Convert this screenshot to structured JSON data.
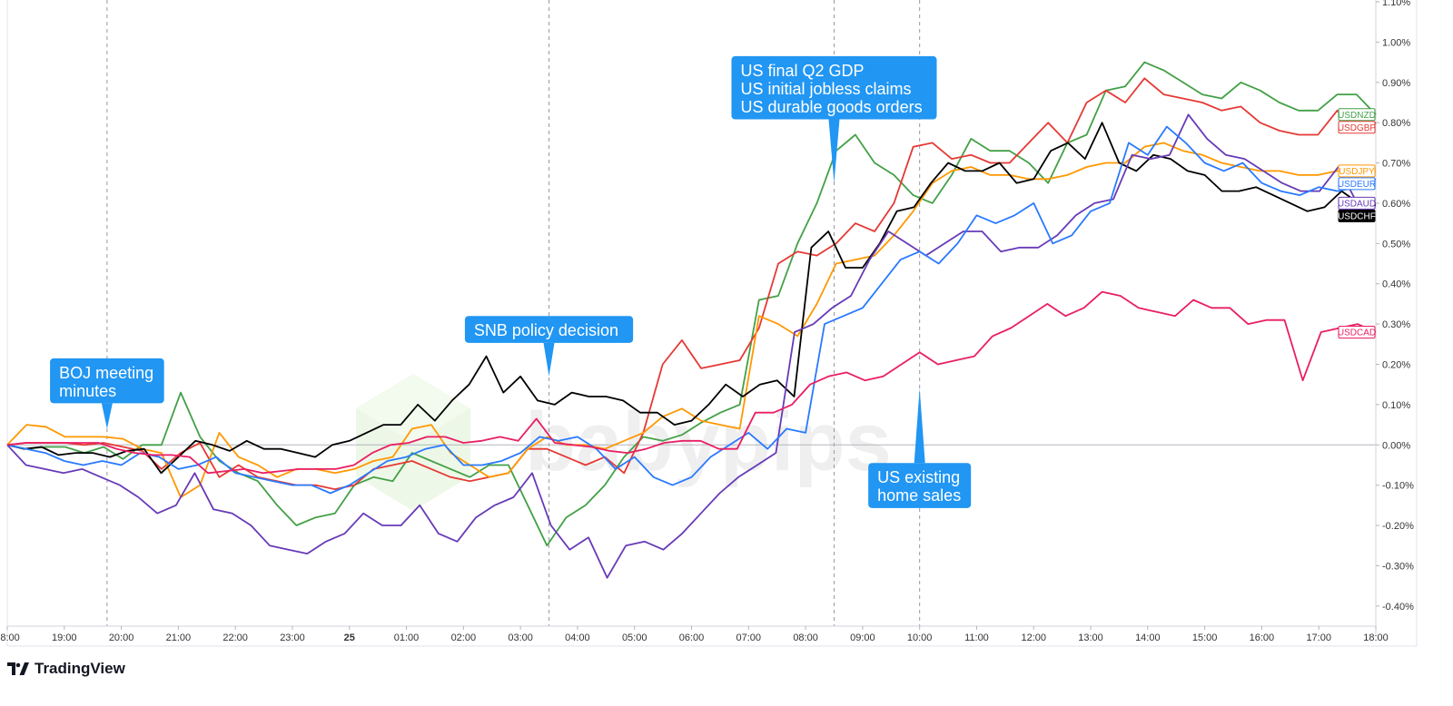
{
  "branding": {
    "name": "TradingView",
    "icon": "tradingview-logo-icon",
    "watermark": "babypips",
    "watermark_icon": "babypips-cube-icon"
  },
  "chart_data": {
    "type": "line",
    "x_ticks": [
      "18:00",
      "19:00",
      "20:00",
      "21:00",
      "22:00",
      "23:00",
      "25",
      "01:00",
      "02:00",
      "03:00",
      "04:00",
      "05:00",
      "06:00",
      "07:00",
      "08:00",
      "09:00",
      "10:00",
      "11:00",
      "12:00",
      "13:00",
      "14:00",
      "15:00",
      "16:00",
      "17:00",
      "18:00"
    ],
    "x_tick_bold": "25",
    "xlim": [
      0,
      24
    ],
    "y_ticks": [
      "1.10%",
      "1.00%",
      "0.90%",
      "0.80%",
      "0.70%",
      "0.60%",
      "0.50%",
      "0.40%",
      "0.30%",
      "0.20%",
      "0.10%",
      "0.00%",
      "-0.10%",
      "-0.20%",
      "-0.30%",
      "-0.40%"
    ],
    "ylim": [
      -0.45,
      1.1
    ],
    "yunit": "%",
    "zero_line": true,
    "event_lines_x": [
      1.75,
      9.5,
      14.5,
      16.0
    ],
    "annotations": [
      {
        "id": "boj",
        "lines": [
          "BOJ meeting",
          "minutes"
        ],
        "anchor_x": 1.75,
        "anchor_y": 0.04,
        "pointer": "down",
        "box_center_x": 1.75,
        "box_top": 0.215,
        "box_width_x": 2.0
      },
      {
        "id": "snb",
        "lines": [
          "SNB policy decision"
        ],
        "anchor_x": 9.5,
        "anchor_y": 0.17,
        "pointer": "down",
        "box_center_x": 9.5,
        "box_top": 0.32,
        "box_width_x": 2.95
      },
      {
        "id": "gdp",
        "lines": [
          "US final Q2 GDP",
          "US initial jobless claims",
          "US durable goods orders"
        ],
        "anchor_x": 14.5,
        "anchor_y": 0.65,
        "pointer": "down",
        "box_center_x": 14.5,
        "box_top": 0.965,
        "box_width_x": 3.6
      },
      {
        "id": "ehs",
        "lines": [
          "US existing",
          "home sales"
        ],
        "anchor_x": 16.0,
        "anchor_y": 0.14,
        "pointer": "up",
        "box_center_x": 16.0,
        "box_top": -0.045,
        "box_width_x": 1.8
      }
    ],
    "series": [
      {
        "name": "USDNZD",
        "color": "#43a047",
        "label_bg": "#ffffff",
        "label_text": "#43a047",
        "values": [
          0,
          -0.01,
          -0.005,
          -0.005,
          -0.02,
          -0.005,
          -0.035,
          0,
          0,
          0.13,
          0.02,
          -0.04,
          -0.07,
          -0.09,
          -0.15,
          -0.2,
          -0.18,
          -0.17,
          -0.1,
          -0.08,
          -0.09,
          -0.02,
          -0.04,
          -0.06,
          -0.08,
          -0.05,
          -0.05,
          -0.15,
          -0.25,
          -0.18,
          -0.15,
          -0.1,
          -0.03,
          0.02,
          0.01,
          0.025,
          0.055,
          0.08,
          0.1,
          0.36,
          0.37,
          0.5,
          0.6,
          0.73,
          0.77,
          0.7,
          0.67,
          0.62,
          0.6,
          0.67,
          0.76,
          0.73,
          0.73,
          0.7,
          0.65,
          0.75,
          0.77,
          0.88,
          0.89,
          0.95,
          0.93,
          0.9,
          0.87,
          0.86,
          0.9,
          0.88,
          0.85,
          0.83,
          0.83,
          0.87,
          0.87,
          0.82
        ]
      },
      {
        "name": "USDGBP",
        "color": "#e53935",
        "label_bg": "#ffffff",
        "label_text": "#e53935",
        "values": [
          0,
          0.005,
          0.005,
          0.005,
          0,
          0.005,
          -0.005,
          -0.015,
          -0.06,
          -0.02,
          0.005,
          -0.08,
          -0.05,
          -0.08,
          -0.09,
          -0.1,
          -0.1,
          -0.11,
          -0.1,
          -0.06,
          -0.05,
          -0.04,
          -0.06,
          -0.08,
          -0.09,
          -0.08,
          -0.07,
          -0.01,
          -0.01,
          -0.03,
          -0.05,
          -0.03,
          -0.07,
          0.03,
          0.2,
          0.26,
          0.19,
          0.2,
          0.21,
          0.29,
          0.45,
          0.48,
          0.47,
          0.5,
          0.55,
          0.53,
          0.6,
          0.74,
          0.75,
          0.71,
          0.72,
          0.7,
          0.7,
          0.75,
          0.8,
          0.75,
          0.85,
          0.88,
          0.85,
          0.91,
          0.87,
          0.86,
          0.85,
          0.83,
          0.84,
          0.8,
          0.78,
          0.77,
          0.77,
          0.83,
          0.78,
          0.8
        ]
      },
      {
        "name": "USDJPY",
        "color": "#ff9800",
        "label_bg": "#ffffff",
        "label_text": "#ff9800",
        "values": [
          0,
          0.05,
          0.045,
          0.02,
          0.02,
          0.02,
          0.015,
          -0.01,
          -0.02,
          -0.13,
          -0.1,
          0.03,
          -0.03,
          -0.05,
          -0.08,
          -0.06,
          -0.06,
          -0.07,
          -0.06,
          -0.04,
          -0.03,
          0.04,
          0.05,
          -0.02,
          -0.05,
          -0.08,
          -0.07,
          -0.01,
          0.02,
          0,
          0,
          -0.01,
          0.01,
          0.03,
          0.07,
          0.09,
          0.06,
          0.05,
          0.04,
          0.32,
          0.3,
          0.27,
          0.35,
          0.45,
          0.46,
          0.47,
          0.52,
          0.58,
          0.65,
          0.68,
          0.69,
          0.67,
          0.67,
          0.66,
          0.66,
          0.67,
          0.69,
          0.7,
          0.7,
          0.74,
          0.75,
          0.73,
          0.72,
          0.7,
          0.69,
          0.68,
          0.68,
          0.67,
          0.67,
          0.68,
          0.69,
          0.68
        ]
      },
      {
        "name": "USDCHF",
        "color": "#000000",
        "label_bg": "#000000",
        "label_text": "#ffffff",
        "values": [
          0,
          -0.01,
          -0.005,
          -0.025,
          -0.02,
          -0.02,
          -0.03,
          -0.015,
          -0.01,
          -0.07,
          -0.03,
          0.01,
          0,
          -0.015,
          0.01,
          -0.01,
          -0.01,
          -0.02,
          -0.03,
          0,
          0.01,
          0.03,
          0.05,
          0.05,
          0.1,
          0.06,
          0.11,
          0.15,
          0.22,
          0.13,
          0.17,
          0.11,
          0.1,
          0.13,
          0.12,
          0.12,
          0.11,
          0.08,
          0.08,
          0.05,
          0.06,
          0.1,
          0.15,
          0.12,
          0.15,
          0.16,
          0.12,
          0.49,
          0.53,
          0.44,
          0.44,
          0.5,
          0.58,
          0.59,
          0.65,
          0.7,
          0.68,
          0.68,
          0.7,
          0.65,
          0.66,
          0.73,
          0.75,
          0.71,
          0.8,
          0.7,
          0.68,
          0.72,
          0.71,
          0.68,
          0.67,
          0.63,
          0.63,
          0.64,
          0.62,
          0.6,
          0.58,
          0.59,
          0.63,
          0.6,
          0.595
        ]
      },
      {
        "name": "USDAUD",
        "color": "#673ab7",
        "label_bg": "#ffffff",
        "label_text": "#673ab7",
        "values": [
          0,
          -0.05,
          -0.06,
          -0.07,
          -0.06,
          -0.08,
          -0.1,
          -0.13,
          -0.17,
          -0.15,
          -0.07,
          -0.16,
          -0.17,
          -0.2,
          -0.25,
          -0.26,
          -0.27,
          -0.24,
          -0.22,
          -0.17,
          -0.2,
          -0.2,
          -0.15,
          -0.22,
          -0.24,
          -0.18,
          -0.15,
          -0.13,
          -0.07,
          -0.2,
          -0.26,
          -0.23,
          -0.33,
          -0.25,
          -0.24,
          -0.26,
          -0.22,
          -0.17,
          -0.12,
          -0.08,
          -0.05,
          -0.02,
          0.28,
          0.3,
          0.34,
          0.37,
          0.46,
          0.53,
          0.5,
          0.47,
          0.5,
          0.53,
          0.53,
          0.48,
          0.49,
          0.49,
          0.52,
          0.57,
          0.6,
          0.61,
          0.72,
          0.71,
          0.72,
          0.82,
          0.76,
          0.72,
          0.71,
          0.68,
          0.65,
          0.63,
          0.63,
          0.69,
          0.6,
          0.6
        ]
      },
      {
        "name": "USDEUR",
        "color": "#2979ff",
        "label_bg": "#ffffff",
        "label_text": "#2979ff",
        "values": [
          0,
          -0.01,
          -0.02,
          -0.04,
          -0.05,
          -0.04,
          -0.05,
          -0.02,
          -0.03,
          -0.06,
          -0.05,
          -0.03,
          -0.07,
          -0.08,
          -0.09,
          -0.1,
          -0.1,
          -0.12,
          -0.1,
          -0.07,
          -0.04,
          -0.03,
          -0.01,
          0,
          -0.05,
          -0.05,
          -0.04,
          -0.02,
          0.02,
          0.01,
          0.02,
          -0.01,
          -0.06,
          -0.03,
          -0.08,
          -0.1,
          -0.08,
          -0.03,
          0,
          0.03,
          -0.01,
          0.04,
          0.03,
          0.3,
          0.32,
          0.34,
          0.4,
          0.46,
          0.48,
          0.45,
          0.5,
          0.57,
          0.55,
          0.57,
          0.6,
          0.5,
          0.52,
          0.58,
          0.6,
          0.75,
          0.72,
          0.79,
          0.75,
          0.7,
          0.68,
          0.7,
          0.65,
          0.63,
          0.62,
          0.64,
          0.63,
          0.64,
          0.66
        ]
      },
      {
        "name": "USDCAD",
        "color": "#e91e63",
        "label_bg": "#ffffff",
        "label_text": "#e91e63",
        "values": [
          0,
          0.005,
          0.005,
          0.005,
          0.005,
          0.005,
          -0.01,
          -0.02,
          -0.025,
          -0.025,
          -0.03,
          -0.07,
          -0.065,
          -0.06,
          -0.07,
          -0.065,
          -0.06,
          -0.06,
          -0.06,
          -0.05,
          -0.02,
          0,
          0.005,
          0.02,
          0.02,
          0.005,
          0.01,
          0.02,
          0.01,
          0.065,
          0.005,
          0,
          -0.005,
          -0.015,
          -0.02,
          -0.01,
          0.005,
          0.01,
          0.01,
          -0.01,
          -0.01,
          0.08,
          0.08,
          0.1,
          0.15,
          0.17,
          0.18,
          0.16,
          0.17,
          0.2,
          0.23,
          0.2,
          0.21,
          0.22,
          0.27,
          0.29,
          0.32,
          0.35,
          0.32,
          0.34,
          0.38,
          0.37,
          0.34,
          0.33,
          0.32,
          0.36,
          0.34,
          0.34,
          0.3,
          0.31,
          0.31,
          0.16,
          0.28,
          0.29,
          0.3,
          0.28
        ]
      }
    ]
  }
}
